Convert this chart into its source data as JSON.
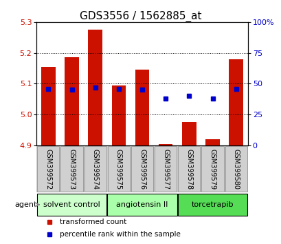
{
  "title": "GDS3556 / 1562885_at",
  "samples": [
    "GSM399572",
    "GSM399573",
    "GSM399574",
    "GSM399575",
    "GSM399576",
    "GSM399577",
    "GSM399578",
    "GSM399579",
    "GSM399580"
  ],
  "bar_tops": [
    5.155,
    5.185,
    5.275,
    5.095,
    5.145,
    4.905,
    4.975,
    4.92,
    5.18
  ],
  "bar_bottom": 4.9,
  "percentile_ranks": [
    46,
    45,
    47,
    46,
    45,
    38,
    40,
    38,
    46
  ],
  "ylim_left": [
    4.9,
    5.3
  ],
  "ylim_right": [
    0,
    100
  ],
  "yticks_left": [
    4.9,
    5.0,
    5.1,
    5.2,
    5.3
  ],
  "yticks_right": [
    0,
    25,
    50,
    75,
    100
  ],
  "bar_color": "#cc1100",
  "dot_color": "#0000cc",
  "agent_groups": [
    {
      "label": "solvent control",
      "indices": [
        0,
        1,
        2
      ],
      "color": "#ccffcc"
    },
    {
      "label": "angiotensin II",
      "indices": [
        3,
        4,
        5
      ],
      "color": "#aaffaa"
    },
    {
      "label": "torcetrapib",
      "indices": [
        6,
        7,
        8
      ],
      "color": "#55dd55"
    }
  ],
  "legend_items": [
    {
      "label": "transformed count",
      "color": "#cc1100"
    },
    {
      "label": "percentile rank within the sample",
      "color": "#0000cc"
    }
  ],
  "bg_color": "#ffffff",
  "plot_bg": "#ffffff",
  "tick_label_color_left": "#cc1100",
  "tick_label_color_right": "#0000cc",
  "bar_width": 0.6
}
